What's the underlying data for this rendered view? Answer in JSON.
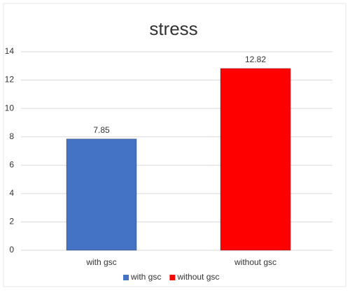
{
  "chart_data": {
    "type": "bar",
    "title": "stress",
    "categories": [
      "with gsc",
      "without gsc"
    ],
    "values": [
      7.85,
      12.82
    ],
    "colors": [
      "#4472c4",
      "#ff0000"
    ],
    "ylim": [
      0,
      14
    ],
    "yticks": [
      0,
      2,
      4,
      6,
      8,
      10,
      12,
      14
    ],
    "grid": true,
    "legend": "bottom"
  }
}
